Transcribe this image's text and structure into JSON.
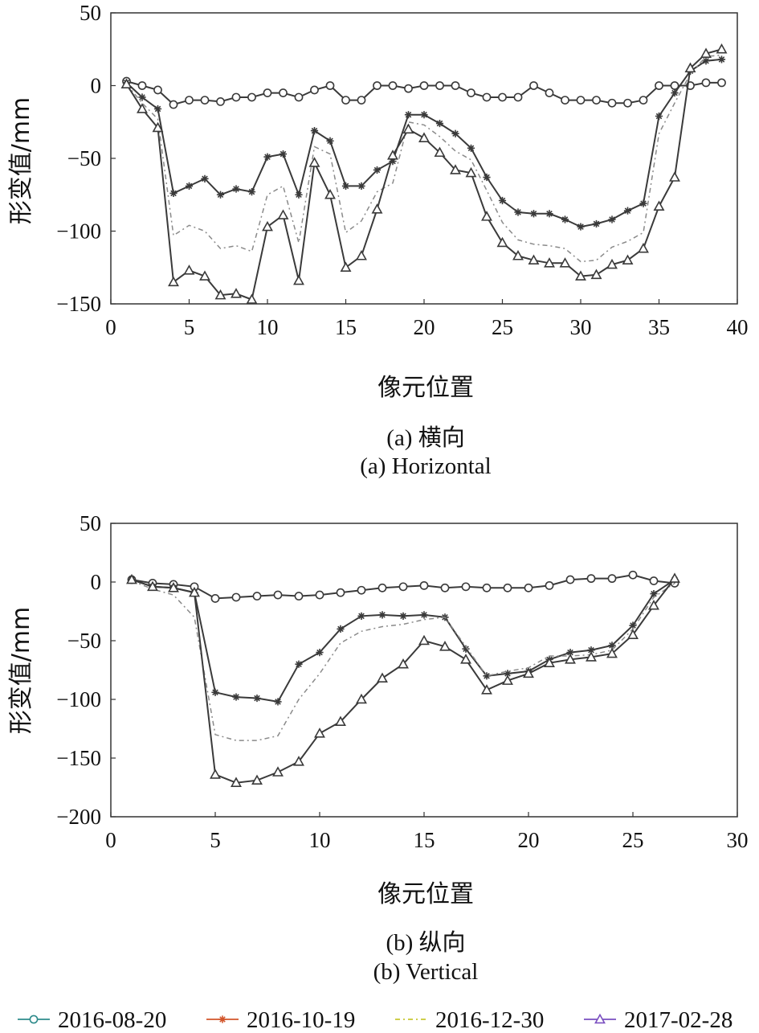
{
  "chart_data": [
    {
      "type": "line",
      "ylabel": "形变值/mm",
      "xlabel": "像元位置",
      "caption_cn": "(a) 横向",
      "caption_en": "(a) Horizontal",
      "xlim": [
        0,
        40
      ],
      "ylim": [
        -150,
        50
      ],
      "xticks": [
        0,
        5,
        10,
        15,
        20,
        25,
        30,
        35,
        40
      ],
      "yticks": [
        50,
        0,
        -50,
        -100,
        -150
      ],
      "x": [
        1,
        2,
        3,
        4,
        5,
        6,
        7,
        8,
        9,
        10,
        11,
        12,
        13,
        14,
        15,
        16,
        17,
        18,
        19,
        20,
        21,
        22,
        23,
        24,
        25,
        26,
        27,
        28,
        29,
        30,
        31,
        32,
        33,
        34,
        35,
        36,
        37,
        38,
        39
      ],
      "series": [
        {
          "name": "2016-08-20",
          "marker": "circle",
          "dash": "",
          "values": [
            3,
            0,
            -3,
            -13,
            -10,
            -10,
            -11,
            -8,
            -8,
            -5,
            -5,
            -8,
            -3,
            0,
            -10,
            -10,
            0,
            0,
            -2,
            0,
            0,
            0,
            -5,
            -8,
            -8,
            -8,
            0,
            -5,
            -10,
            -10,
            -10,
            -12,
            -12,
            -10,
            0,
            0,
            0,
            2,
            2
          ]
        },
        {
          "name": "2016-10-19",
          "marker": "star",
          "dash": "",
          "values": [
            2,
            -8,
            -16,
            -74,
            -69,
            -64,
            -75,
            -71,
            -73,
            -49,
            -47,
            -75,
            -31,
            -38,
            -69,
            -69,
            -58,
            -52,
            -20,
            -20,
            -26,
            -33,
            -43,
            -63,
            -79,
            -87,
            -88,
            -88,
            -92,
            -97,
            -95,
            -92,
            -86,
            -81,
            -21,
            -5,
            10,
            17,
            18
          ]
        },
        {
          "name": "2016-12-30",
          "marker": "none",
          "dash": "6 4 2 4",
          "values": [
            1,
            -12,
            -23,
            -103,
            -96,
            -100,
            -112,
            -110,
            -114,
            -75,
            -69,
            -108,
            -42,
            -47,
            -101,
            -93,
            -73,
            -67,
            -25,
            -27,
            -35,
            -45,
            -51,
            -72,
            -94,
            -106,
            -109,
            -110,
            -112,
            -121,
            -120,
            -111,
            -107,
            -101,
            -33,
            -12,
            8,
            20,
            21
          ]
        },
        {
          "name": "2017-02-28",
          "marker": "triangle",
          "dash": "",
          "values": [
            1,
            -16,
            -29,
            -135,
            -127,
            -131,
            -144,
            -143,
            -147,
            -97,
            -89,
            -134,
            -53,
            -75,
            -125,
            -117,
            -85,
            -48,
            -30,
            -36,
            -46,
            -58,
            -60,
            -90,
            -108,
            -117,
            -120,
            -122,
            -122,
            -131,
            -130,
            -123,
            -120,
            -112,
            -83,
            -63,
            12,
            22,
            25
          ]
        }
      ]
    },
    {
      "type": "line",
      "ylabel": "形变值/mm",
      "xlabel": "像元位置",
      "caption_cn": "(b) 纵向",
      "caption_en": "(b) Vertical",
      "xlim": [
        0,
        30
      ],
      "ylim": [
        -200,
        50
      ],
      "xticks": [
        0,
        5,
        10,
        15,
        20,
        25,
        30
      ],
      "yticks": [
        50,
        0,
        -50,
        -100,
        -150,
        -200
      ],
      "x": [
        1,
        2,
        3,
        4,
        5,
        6,
        7,
        8,
        9,
        10,
        11,
        12,
        13,
        14,
        15,
        16,
        17,
        18,
        19,
        20,
        21,
        22,
        23,
        24,
        25,
        26,
        27
      ],
      "series": [
        {
          "name": "2016-08-20",
          "marker": "circle",
          "dash": "",
          "values": [
            2,
            -1,
            -2,
            -4,
            -14,
            -13,
            -12,
            -11,
            -12,
            -11,
            -9,
            -7,
            -5,
            -4,
            -3,
            -5,
            -4,
            -5,
            -5,
            -5,
            -3,
            2,
            3,
            3,
            6,
            1,
            -1
          ]
        },
        {
          "name": "2016-10-19",
          "marker": "star",
          "dash": "",
          "values": [
            2,
            -4,
            -5,
            -9,
            -94,
            -98,
            -99,
            -102,
            -70,
            -60,
            -40,
            -29,
            -28,
            -29,
            -28,
            -30,
            -57,
            -80,
            -78,
            -76,
            -66,
            -60,
            -58,
            -54,
            -37,
            -10,
            2
          ]
        },
        {
          "name": "2016-12-30",
          "marker": "none",
          "dash": "6 4 2 4",
          "values": [
            1,
            -6,
            -11,
            -30,
            -130,
            -135,
            -135,
            -131,
            -100,
            -78,
            -52,
            -42,
            -38,
            -36,
            -32,
            -30,
            -55,
            -80,
            -76,
            -73,
            -63,
            -63,
            -62,
            -58,
            -40,
            -13,
            -1
          ]
        },
        {
          "name": "2017-02-28",
          "marker": "triangle",
          "dash": "",
          "values": [
            2,
            -4,
            -5,
            -9,
            -164,
            -171,
            -169,
            -162,
            -153,
            -129,
            -119,
            -100,
            -82,
            -70,
            -50,
            -55,
            -66,
            -92,
            -84,
            -78,
            -69,
            -66,
            -64,
            -61,
            -45,
            -20,
            3
          ]
        }
      ]
    }
  ],
  "legend": [
    {
      "label": "2016-08-20",
      "color": "#2e8b8b",
      "marker": "circle"
    },
    {
      "label": "2016-10-19",
      "color": "#d2552a",
      "marker": "star"
    },
    {
      "label": "2016-12-30",
      "color": "#c8c832",
      "marker": "none"
    },
    {
      "label": "2017-02-28",
      "color": "#7a4fc0",
      "marker": "triangle"
    }
  ],
  "colors": {
    "line": "#3a3a3a",
    "dash_line": "#8a8a8a"
  }
}
